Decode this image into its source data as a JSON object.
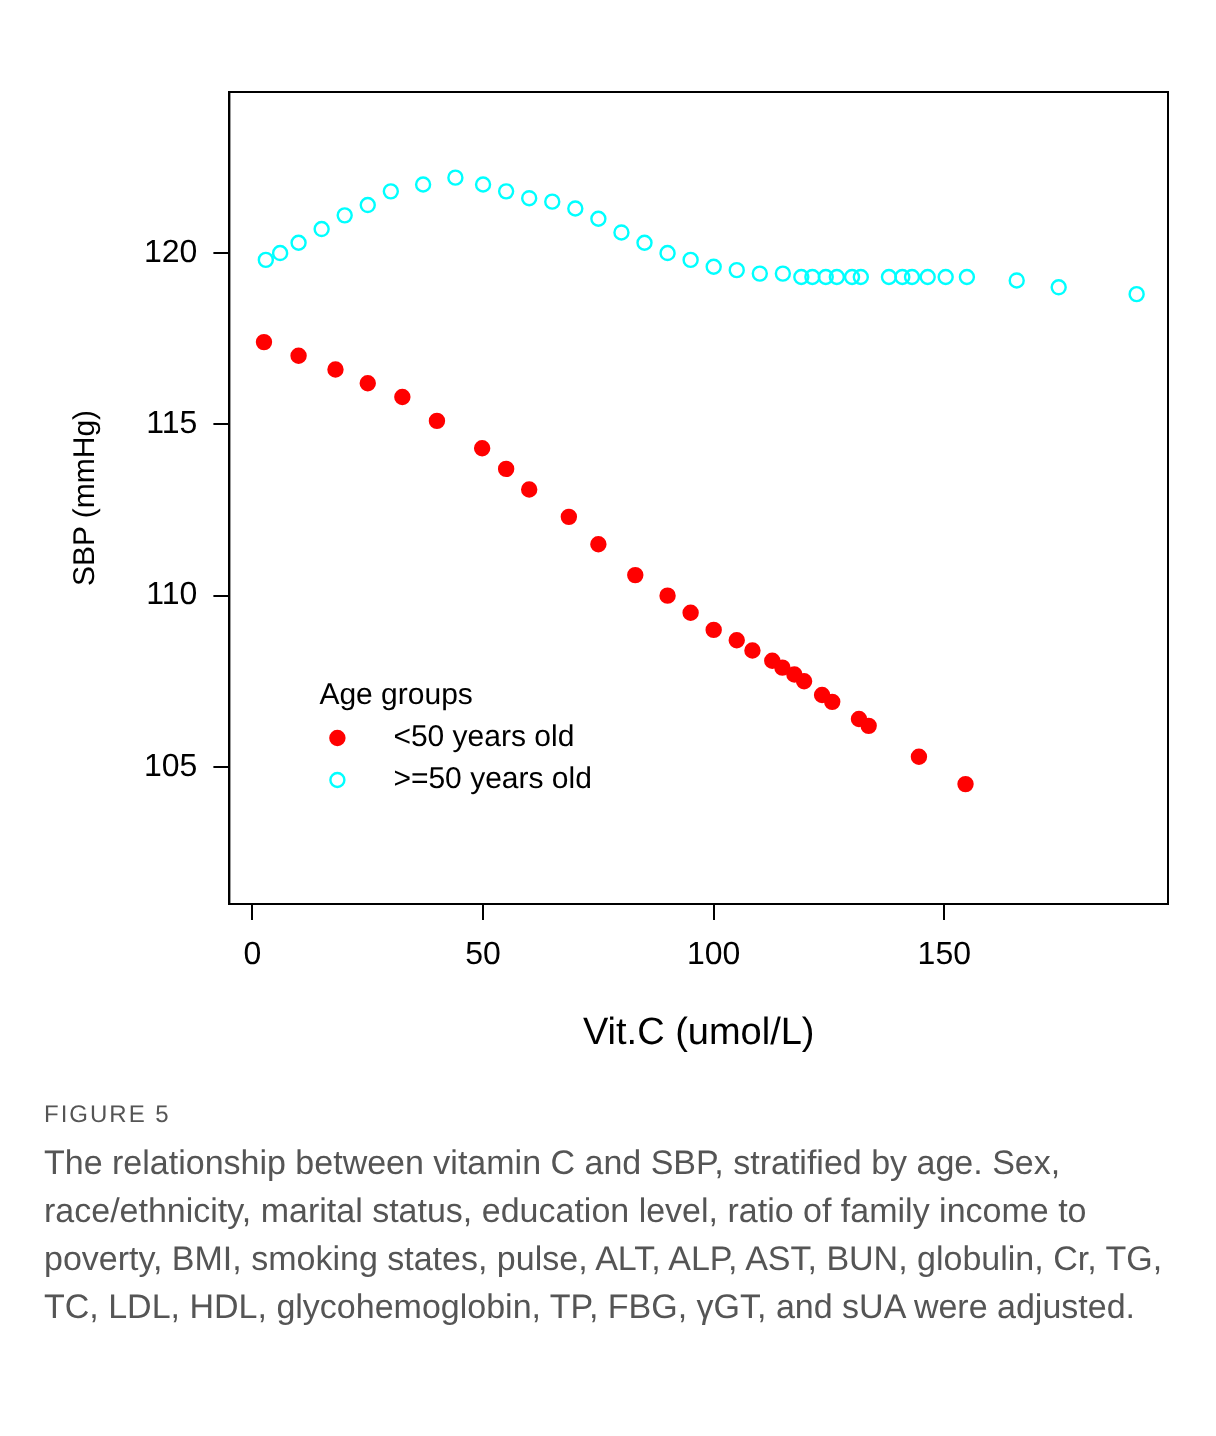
{
  "chart_data": {
    "type": "scatter",
    "xlabel": "Vit.C (umol/L)",
    "ylabel": "SBP (mmHg)",
    "legend_title": "Age groups",
    "legend": "bottom left",
    "grid": false,
    "marker": "circle",
    "xlim": [
      -5,
      198.5
    ],
    "ylim": [
      101,
      124.7
    ],
    "xticks": [
      0,
      50,
      100,
      150
    ],
    "yticks": [
      105,
      110,
      115,
      120
    ],
    "series": [
      {
        "name": "<50 years old",
        "color": "#ff0000",
        "x": [
          2.5,
          10,
          18,
          25,
          32.5,
          40,
          49.8,
          55,
          60,
          68.6,
          75,
          83,
          90,
          95,
          100,
          105,
          108.4,
          112.7,
          114.9,
          117.5,
          119.6,
          123.5,
          125.7,
          131.5,
          133.6,
          144.5,
          154.6
        ],
        "values": [
          117.4,
          117.0,
          116.6,
          116.2,
          115.8,
          115.1,
          114.3,
          113.7,
          113.1,
          112.3,
          111.5,
          110.6,
          110.0,
          109.5,
          109.0,
          108.7,
          108.4,
          108.1,
          107.9,
          107.7,
          107.5,
          107.1,
          106.9,
          106.4,
          106.2,
          105.3,
          104.5
        ]
      },
      {
        "name": ">=50 years old",
        "color": "#00ffff",
        "x": [
          2.9,
          6,
          10,
          15,
          20,
          25,
          30,
          37,
          44,
          50,
          55,
          60,
          65,
          70,
          75,
          80,
          85,
          90,
          95,
          100,
          105,
          110,
          115,
          119,
          121.4,
          124.3,
          126.7,
          130,
          131.9,
          138,
          140.9,
          143,
          146.4,
          150.3,
          154.9,
          165.7,
          174.8,
          191.7
        ],
        "values": [
          119.8,
          120.0,
          120.3,
          120.7,
          121.1,
          121.4,
          121.8,
          122.0,
          122.2,
          122.0,
          121.8,
          121.6,
          121.5,
          121.3,
          121.0,
          120.6,
          120.3,
          120.0,
          119.8,
          119.6,
          119.5,
          119.4,
          119.4,
          119.3,
          119.3,
          119.3,
          119.3,
          119.3,
          119.3,
          119.3,
          119.3,
          119.3,
          119.3,
          119.3,
          119.3,
          119.2,
          119.0,
          118.8
        ]
      }
    ],
    "annotations": [
      "FIGURE 5",
      "The relationship between vitamin C and SBP, stratified by age. Sex, race/ethnicity, marital status, education level, ratio of family income to poverty, BMI, smoking states, pulse, ALT, ALP, AST, BUN, globulin, Cr, TG, TC, LDL, HDL, glycohemoglobin, TP, FBG, γGT, and sUA were adjusted."
    ]
  }
}
